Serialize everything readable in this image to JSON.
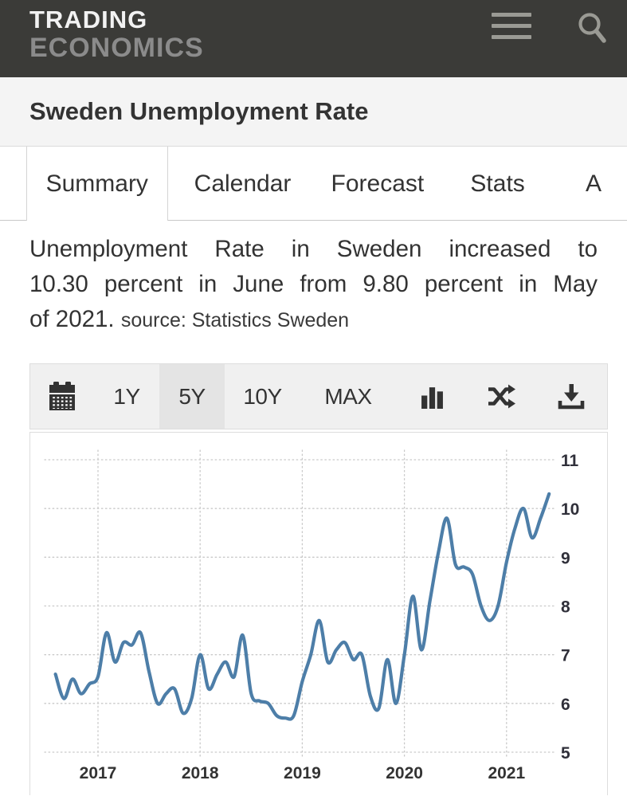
{
  "header": {
    "logo_line1": "TRADING",
    "logo_line2": "ECONOMICS"
  },
  "page": {
    "title": "Sweden Unemployment Rate"
  },
  "tabs": [
    {
      "label": "Summary",
      "active": true
    },
    {
      "label": "Calendar",
      "active": false
    },
    {
      "label": "Forecast",
      "active": false
    },
    {
      "label": "Stats",
      "active": false
    },
    {
      "label": "A",
      "active": false,
      "clipped": true
    }
  ],
  "summary": {
    "lines": [
      "Unemployment Rate in Sweden increased to",
      "10.30 percent in June from 9.80 percent in May",
      "of 2021."
    ],
    "source": "source: Statistics Sweden"
  },
  "toolbar": {
    "ranges": [
      {
        "label": "1Y",
        "active": false
      },
      {
        "label": "5Y",
        "active": true
      },
      {
        "label": "10Y",
        "active": false
      },
      {
        "label": "MAX",
        "active": false
      }
    ],
    "icons": {
      "calendar": "calendar-grid",
      "bar_chart": "column-chart",
      "shuffle": "crossing-arrows",
      "download": "arrow-into-tray"
    }
  },
  "icons": {
    "menu": "hamburger-3-bars",
    "search": "magnifier"
  },
  "colors": {
    "header_bg": "#3b3b38",
    "logo_primary": "#f2f2f2",
    "logo_secondary": "#8b8b8b",
    "title_strip_bg": "#f4f4f4",
    "toolbar_bg": "#f0f0f0",
    "active_range_bg": "#e4e4e4",
    "line": "#4d7ea8",
    "gridline": "#c9c9c9",
    "text": "#333333"
  },
  "chart_data": {
    "type": "line",
    "series": [
      {
        "name": "Sweden Unemployment Rate (%)",
        "start_month": "2016-08",
        "frequency": "monthly",
        "values": [
          6.6,
          6.1,
          6.5,
          6.2,
          6.4,
          6.55,
          7.45,
          6.85,
          7.25,
          7.2,
          7.45,
          6.65,
          6.0,
          6.2,
          6.3,
          5.8,
          6.1,
          7.0,
          6.3,
          6.6,
          6.85,
          6.55,
          7.4,
          6.2,
          6.05,
          6.0,
          5.75,
          5.7,
          5.75,
          6.45,
          7.0,
          7.7,
          6.85,
          7.1,
          7.25,
          6.9,
          7.0,
          6.15,
          5.9,
          6.9,
          6.0,
          7.0,
          8.2,
          7.1,
          8.1,
          9.1,
          9.8,
          8.85,
          8.8,
          8.65,
          8.0,
          7.7,
          8.0,
          8.9,
          9.6,
          10.0,
          9.4,
          9.8,
          10.3
        ]
      }
    ],
    "x_tick_labels": [
      "2017",
      "2018",
      "2019",
      "2020",
      "2021"
    ],
    "y_ticks": [
      11,
      10,
      9,
      8,
      7,
      6,
      5
    ],
    "ylim": [
      5,
      11
    ],
    "y_axis_position": "right",
    "grid": "dotted",
    "line_color": "#4d7ea8"
  }
}
